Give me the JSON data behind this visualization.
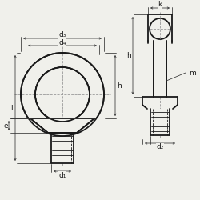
{
  "bg_color": "#f0f0eb",
  "line_color": "#1a1a1a",
  "dim_color": "#333333",
  "dash_color": "#999999",
  "figsize": [
    2.5,
    2.5
  ],
  "dpi": 100,
  "labels": {
    "d1": "d₁",
    "d2": "d₂",
    "d3": "d₃",
    "d4": "d₄",
    "h": "h",
    "e": "e",
    "l": "l",
    "k": "k",
    "m": "m"
  },
  "lw_main": 1.3,
  "lw_thin": 0.6,
  "lw_dim": 0.55,
  "fontsize": 6.5
}
